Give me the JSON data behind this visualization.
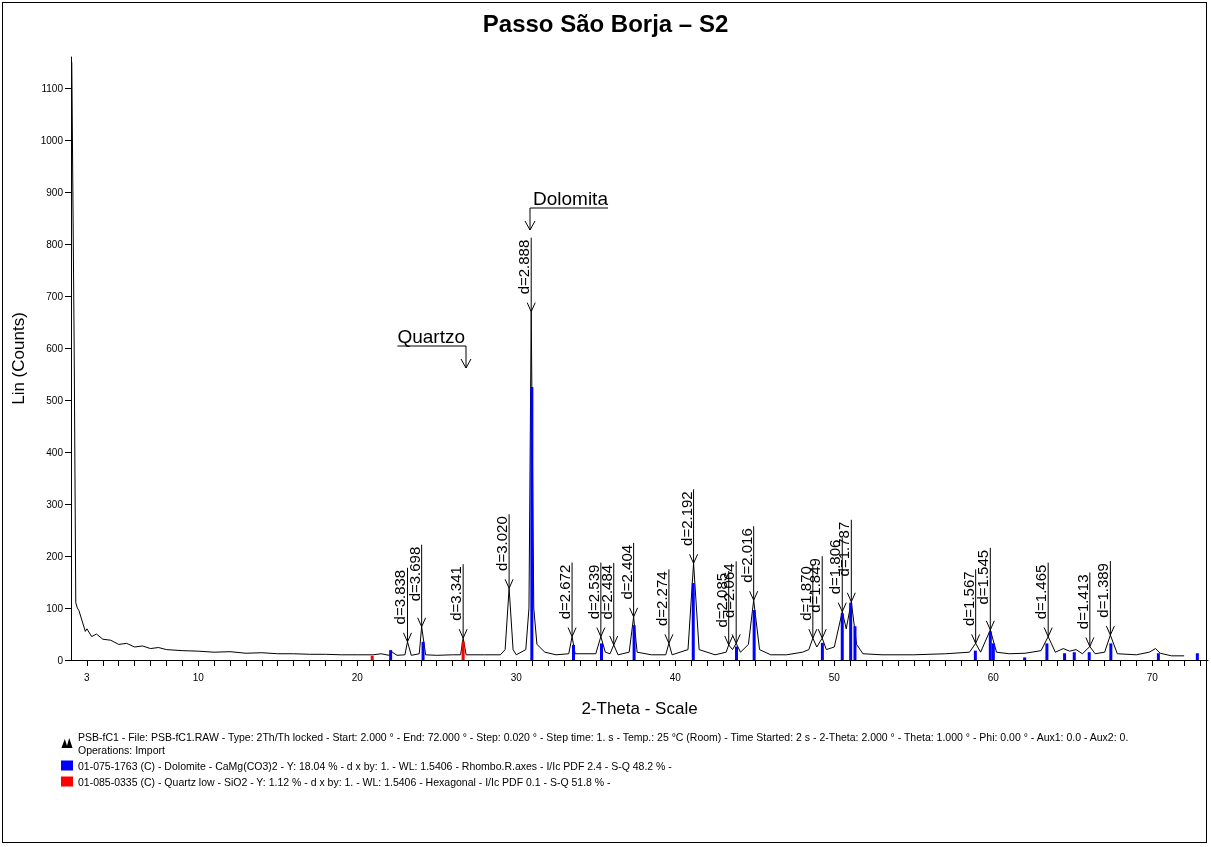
{
  "chart_data": {
    "type": "line",
    "title": "Passo São Borja – S2",
    "xlabel": "2-Theta - Scale",
    "ylabel": "Lin (Counts)",
    "xlim": [
      2,
      73.5
    ],
    "ylim": [
      0,
      1160
    ],
    "xticks": [
      3,
      {
        "value": 4,
        "label": null
      },
      {
        "value": 5,
        "label": null
      },
      {
        "value": 6,
        "label": null
      },
      {
        "value": 7,
        "label": null
      },
      {
        "value": 8,
        "label": null
      },
      {
        "value": 9,
        "label": null
      },
      10,
      {
        "value": 11,
        "label": null
      },
      {
        "value": 12,
        "label": null
      },
      {
        "value": 13,
        "label": null
      },
      {
        "value": 14,
        "label": null
      },
      {
        "value": 15,
        "label": null
      },
      {
        "value": 16,
        "label": null
      },
      {
        "value": 17,
        "label": null
      },
      {
        "value": 18,
        "label": null
      },
      {
        "value": 19,
        "label": null
      },
      20,
      {
        "value": 21,
        "label": null
      },
      {
        "value": 22,
        "label": null
      },
      {
        "value": 23,
        "label": null
      },
      {
        "value": 24,
        "label": null
      },
      {
        "value": 25,
        "label": null
      },
      {
        "value": 26,
        "label": null
      },
      {
        "value": 27,
        "label": null
      },
      {
        "value": 28,
        "label": null
      },
      {
        "value": 29,
        "label": null
      },
      30,
      {
        "value": 31,
        "label": null
      },
      {
        "value": 32,
        "label": null
      },
      {
        "value": 33,
        "label": null
      },
      {
        "value": 34,
        "label": null
      },
      {
        "value": 35,
        "label": null
      },
      {
        "value": 36,
        "label": null
      },
      {
        "value": 37,
        "label": null
      },
      {
        "value": 38,
        "label": null
      },
      {
        "value": 39,
        "label": null
      },
      40,
      {
        "value": 41,
        "label": null
      },
      {
        "value": 42,
        "label": null
      },
      {
        "value": 43,
        "label": null
      },
      {
        "value": 44,
        "label": null
      },
      {
        "value": 45,
        "label": null
      },
      {
        "value": 46,
        "label": null
      },
      {
        "value": 47,
        "label": null
      },
      {
        "value": 48,
        "label": null
      },
      {
        "value": 49,
        "label": null
      },
      50,
      {
        "value": 51,
        "label": null
      },
      {
        "value": 52,
        "label": null
      },
      {
        "value": 53,
        "label": null
      },
      {
        "value": 54,
        "label": null
      },
      {
        "value": 55,
        "label": null
      },
      {
        "value": 56,
        "label": null
      },
      {
        "value": 57,
        "label": null
      },
      {
        "value": 58,
        "label": null
      },
      {
        "value": 59,
        "label": null
      },
      60,
      {
        "value": 61,
        "label": null
      },
      {
        "value": 62,
        "label": null
      },
      {
        "value": 63,
        "label": null
      },
      {
        "value": 64,
        "label": null
      },
      {
        "value": 65,
        "label": null
      },
      {
        "value": 66,
        "label": null
      },
      {
        "value": 67,
        "label": null
      },
      {
        "value": 68,
        "label": null
      },
      {
        "value": 69,
        "label": null
      },
      70,
      {
        "value": 71,
        "label": null
      },
      {
        "value": 72,
        "label": null
      },
      {
        "value": 73,
        "label": null
      }
    ],
    "yticks": [
      0,
      100,
      200,
      300,
      400,
      500,
      600,
      700,
      800,
      900,
      1000,
      1100
    ],
    "grid": false,
    "legend": "bottom",
    "marker": "none",
    "line_style": "solid",
    "series": [
      {
        "name": "PSB-fC1 - File: PSB-fC1.RAW - Type: 2Th/Th locked - Start: 2.000 ° - End: 72.000 ° - Step: 0.020 ° - Step time: 1. s - Temp.: 25 °C (Room) - Time Started: 2 s - 2-Theta: 2.000 ° - Theta: 1.000 ° - Phi: 0.00 ° - Aux1: 0.0 - Aux2: 0. Operations: Import",
        "color": "#000000",
        "x": [
          2.0,
          2.05,
          2.2,
          2.3,
          2.4,
          2.5,
          2.7,
          2.9,
          3.0,
          3.3,
          3.6,
          4.0,
          4.5,
          5.0,
          5.5,
          6.0,
          6.5,
          7.0,
          7.5,
          8.0,
          9.0,
          10,
          11,
          12,
          13,
          14,
          15,
          16,
          17,
          18,
          19,
          20,
          21,
          21.5,
          22,
          22.2,
          22.5,
          23.0,
          23.16,
          23.4,
          23.9,
          24.05,
          24.3,
          25,
          26,
          26.5,
          26.66,
          26.85,
          28,
          29,
          29.3,
          29.55,
          29.8,
          30.0,
          30.6,
          30.8,
          30.94,
          31.1,
          31.3,
          31.8,
          32.5,
          33.3,
          33.51,
          33.7,
          35.0,
          35.32,
          35.6,
          35.9,
          36.13,
          36.4,
          37.1,
          37.38,
          37.6,
          38.5,
          39.4,
          39.6,
          39.8,
          40.8,
          41.15,
          41.5,
          42.5,
          43.2,
          43.36,
          43.6,
          43.83,
          44.1,
          44.6,
          44.93,
          45.3,
          46.0,
          47.0,
          48.0,
          48.4,
          48.65,
          48.9,
          49.24,
          49.5,
          50.0,
          50.5,
          50.75,
          51.07,
          51.4,
          51.8,
          53,
          55,
          57,
          58.5,
          58.89,
          59.2,
          59.81,
          60.2,
          61,
          62,
          63.0,
          63.45,
          63.9,
          64.4,
          64.8,
          65.2,
          65.6,
          66.07,
          66.4,
          67.0,
          67.36,
          67.8,
          69,
          69.8,
          70.2,
          70.5,
          71.2,
          72.0
        ],
        "values": [
          1150,
          1150,
          600,
          110,
          100,
          95,
          75,
          55,
          60,
          45,
          50,
          40,
          38,
          30,
          32,
          25,
          27,
          22,
          24,
          20,
          18,
          17,
          15,
          16,
          13,
          14,
          12,
          12,
          11,
          11,
          10,
          10,
          10,
          12,
          9,
          15,
          9,
          10,
          35,
          9,
          12,
          64,
          10,
          9,
          10,
          10,
          42,
          10,
          10,
          10,
          20,
          138,
          20,
          10,
          20,
          100,
          670,
          100,
          30,
          15,
          10,
          12,
          45,
          12,
          12,
          45,
          15,
          12,
          29,
          10,
          15,
          83,
          15,
          10,
          10,
          32,
          10,
          20,
          186,
          20,
          10,
          15,
          29,
          20,
          32,
          15,
          30,
          115,
          20,
          10,
          10,
          15,
          20,
          42,
          25,
          42,
          20,
          25,
          93,
          60,
          112,
          30,
          12,
          10,
          10,
          12,
          15,
          32,
          15,
          58,
          15,
          12,
          13,
          18,
          45,
          15,
          22,
          17,
          20,
          12,
          26,
          12,
          15,
          48,
          12,
          10,
          15,
          22,
          13,
          8,
          8
        ]
      },
      {
        "name": "01-075-1763 (C) - Dolomite - CaMg(CO3)2 - Y: 18.04 % - d x by: 1. - WL: 1.5406 - Rhombo.R.axes - I/Ic PDF 2.4 - S-Q 48.2 % -",
        "color": "#0000ff",
        "type": "bar",
        "x": [
          22.1,
          24.14,
          30.98,
          33.6,
          35.36,
          37.41,
          41.13,
          43.85,
          44.96,
          49.25,
          50.5,
          51.03,
          51.3,
          58.87,
          59.81,
          60.0,
          61.97,
          63.37,
          64.48,
          65.09,
          66.03,
          67.39,
          70.38,
          72.83
        ],
        "values": [
          19,
          35,
          525,
          29,
          32,
          67,
          148,
          26,
          96,
          33,
          90,
          110,
          65,
          18,
          55,
          32,
          5,
          32,
          13,
          15,
          15,
          32,
          13,
          13
        ]
      },
      {
        "name": "01-085-0335 (C) - Quartz low - SiO2 - Y: 1.12 % - d x by: 1. - WL: 1.5406 - Hexagonal - I/Ic PDF 0.1 - S-Q 51.8 % -",
        "color": "#ff0000",
        "type": "bar",
        "x": [
          20.94,
          26.66
        ],
        "values": [
          8,
          35
        ]
      }
    ],
    "annotations": [
      "Quartzo",
      "Dolomita",
      {
        "text": "d=3.838",
        "x": 23.16,
        "y": 35
      },
      {
        "text": "d=3.698",
        "x": 24.05,
        "y": 64
      },
      {
        "text": "d=3.341",
        "x": 26.66,
        "y": 42
      },
      {
        "text": "d=3.020",
        "x": 29.55,
        "y": 138
      },
      {
        "text": "d=2.888",
        "x": 30.94,
        "y": 670
      },
      {
        "text": "d=2.672",
        "x": 33.51,
        "y": 45
      },
      {
        "text": "d=2.539",
        "x": 35.32,
        "y": 45
      },
      {
        "text": "d=2.484",
        "x": 36.13,
        "y": 29
      },
      {
        "text": "d=2.404",
        "x": 37.38,
        "y": 83
      },
      {
        "text": "d=2.274",
        "x": 39.6,
        "y": 32
      },
      {
        "text": "d=2.192",
        "x": 41.15,
        "y": 186
      },
      {
        "text": "d=2.085",
        "x": 43.36,
        "y": 29
      },
      {
        "text": "d=2.064",
        "x": 43.83,
        "y": 32
      },
      {
        "text": "d=2.016",
        "x": 44.93,
        "y": 115
      },
      {
        "text": "d=1.870",
        "x": 48.65,
        "y": 42
      },
      {
        "text": "d=1.849",
        "x": 49.24,
        "y": 42
      },
      {
        "text": "d=1.806",
        "x": 50.5,
        "y": 93
      },
      {
        "text": "d=1.787",
        "x": 51.07,
        "y": 112
      },
      {
        "text": "d=1.567",
        "x": 58.89,
        "y": 32
      },
      {
        "text": "d=1.545",
        "x": 59.81,
        "y": 58
      },
      {
        "text": "d=1.465",
        "x": 63.45,
        "y": 45
      },
      {
        "text": "d=1.413",
        "x": 66.07,
        "y": 26
      },
      {
        "text": "d=1.389",
        "x": 67.36,
        "y": 48
      }
    ]
  }
}
